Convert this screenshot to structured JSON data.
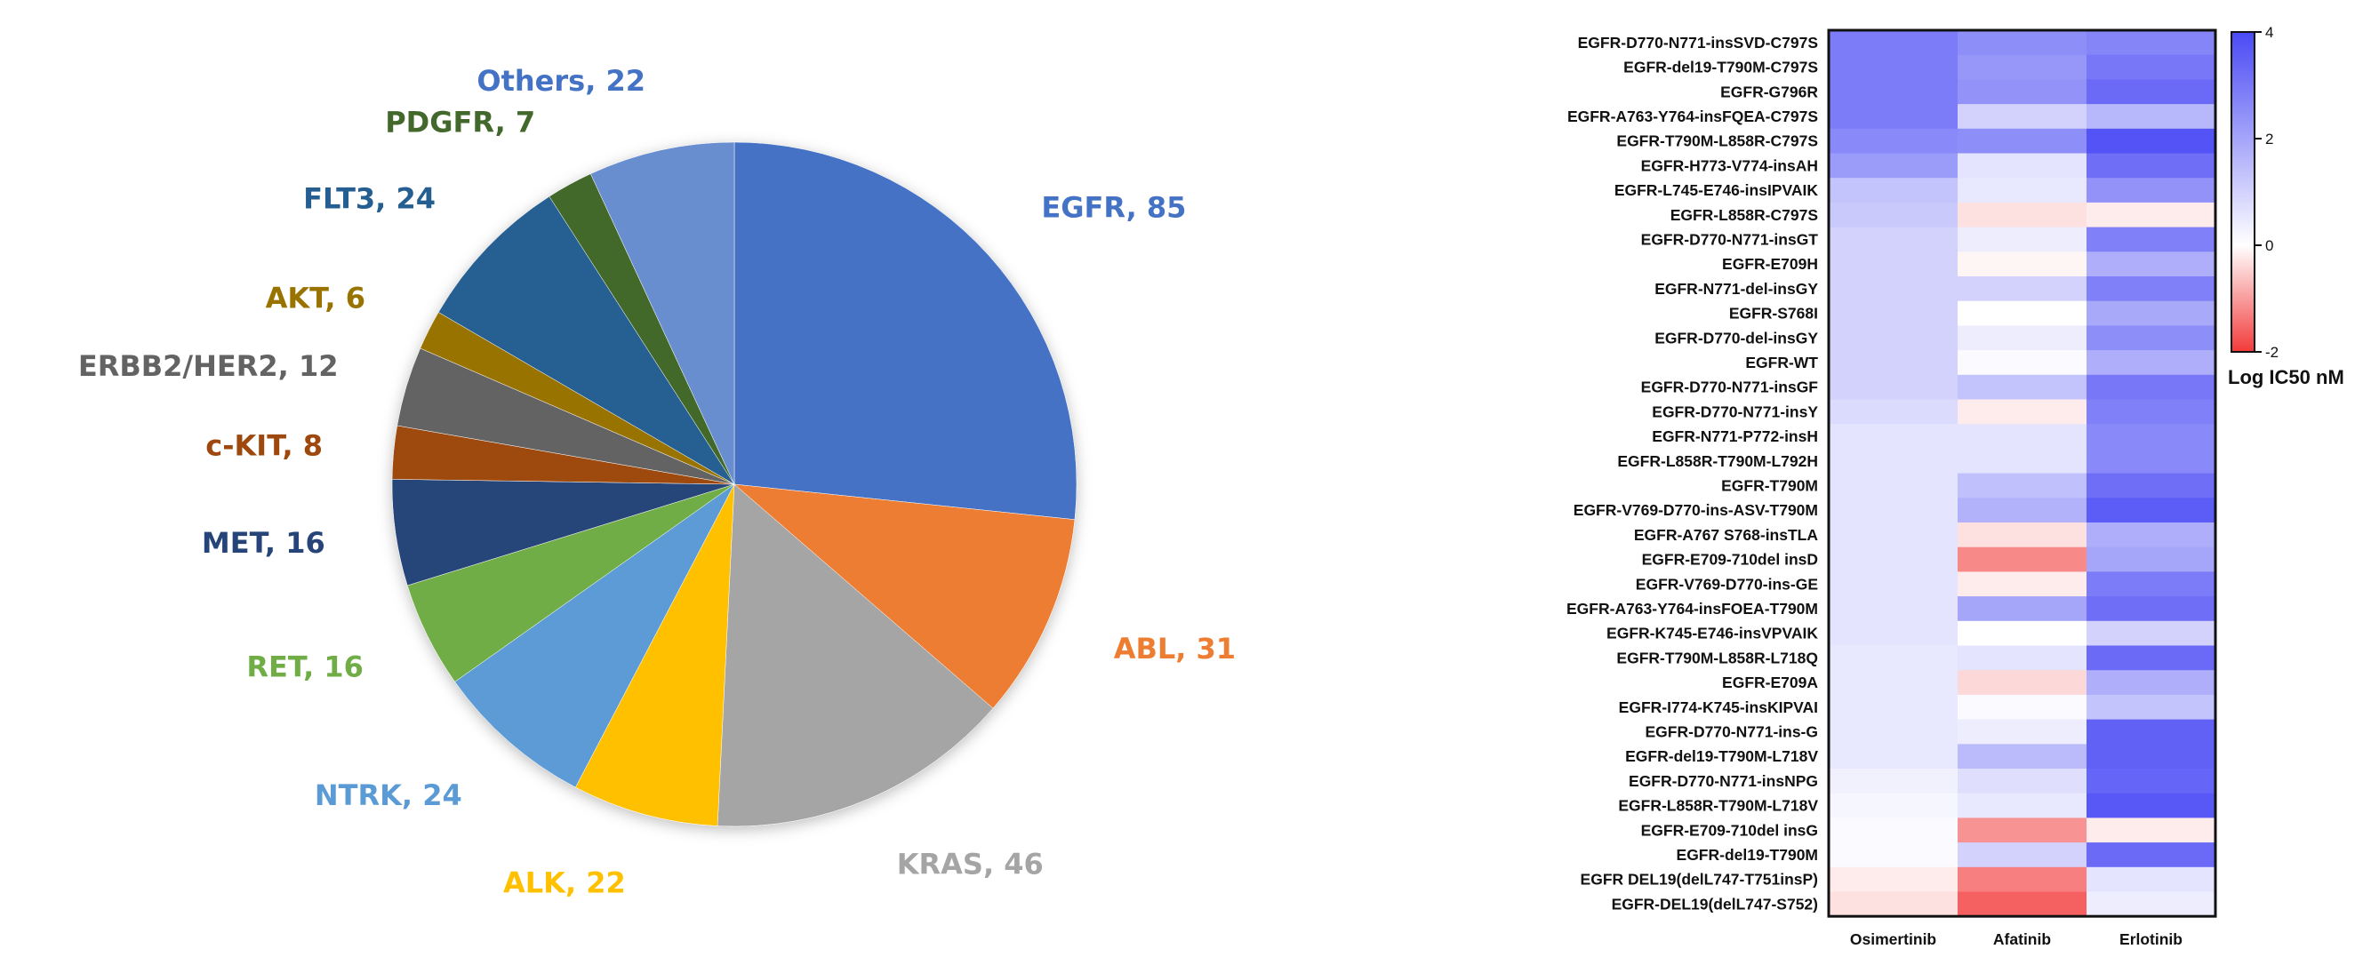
{
  "chart_data": [
    {
      "type": "pie",
      "slices": [
        {
          "label": "EGFR",
          "value": 85,
          "text": "EGFR, 85",
          "color": "#4472C4",
          "label_color": "#4472C4"
        },
        {
          "label": "ABL",
          "value": 31,
          "text": "ABL, 31",
          "color": "#ED7D31",
          "label_color": "#ED7D31"
        },
        {
          "label": "KRAS",
          "value": 46,
          "text": "KRAS, 46",
          "color": "#A5A5A5",
          "label_color": "#A5A5A5"
        },
        {
          "label": "ALK",
          "value": 22,
          "text": "ALK, 22",
          "color": "#FFC000",
          "label_color": "#FFC000"
        },
        {
          "label": "NTRK",
          "value": 24,
          "text": "NTRK, 24",
          "color": "#5B9BD5",
          "label_color": "#5B9BD5"
        },
        {
          "label": "RET",
          "value": 16,
          "text": "RET, 16",
          "color": "#70AD47",
          "label_color": "#70AD47"
        },
        {
          "label": "MET",
          "value": 16,
          "text": "MET, 16",
          "color": "#264478",
          "label_color": "#264478"
        },
        {
          "label": "c-KIT",
          "value": 8,
          "text": "c-KIT, 8",
          "color": "#9E480E",
          "label_color": "#9E480E"
        },
        {
          "label": "ERBB2/HER2",
          "value": 12,
          "text": "ERBB2/HER2, 12",
          "color": "#636363",
          "label_color": "#636363"
        },
        {
          "label": "AKT",
          "value": 6,
          "text": "AKT, 6",
          "color": "#997300",
          "label_color": "#997300"
        },
        {
          "label": "FLT3",
          "value": 24,
          "text": "FLT3, 24",
          "color": "#255E91",
          "label_color": "#255E91"
        },
        {
          "label": "PDGFR",
          "value": 7,
          "text": "PDGFR, 7",
          "color": "#43682B",
          "label_color": "#43682B"
        },
        {
          "label": "Others",
          "value": 22,
          "text": "Others, 22",
          "color": "#698ED0",
          "label_color": "#4472C4"
        }
      ]
    },
    {
      "type": "heatmap",
      "columns": [
        "Osimertinib",
        "Afatinib",
        "Erlotinib"
      ],
      "rows": [
        "EGFR-D770-N771-insSVD-C797S",
        "EGFR-del19-T790M-C797S",
        "EGFR-G796R",
        "EGFR-A763-Y764-insFQEA-C797S",
        "EGFR-T790M-L858R-C797S",
        "EGFR-H773-V774-insAH",
        "EGFR-L745-E746-insIPVAIK",
        "EGFR-L858R-C797S",
        "EGFR-D770-N771-insGT",
        "EGFR-E709H",
        "EGFR-N771-del-insGY",
        "EGFR-S768I",
        "EGFR-D770-del-insGY",
        "EGFR-WT",
        "EGFR-D770-N771-insGF",
        "EGFR-D770-N771-insY",
        "EGFR-N771-P772-insH",
        "EGFR-L858R-T790M-L792H",
        "EGFR-T790M",
        "EGFR-V769-D770-ins-ASV-T790M",
        "EGFR-A767 S768-insTLA",
        "EGFR-E709-710del insD",
        "EGFR-V769-D770-ins-GE",
        "EGFR-A763-Y764-insFOEA-T790M",
        "EGFR-K745-E746-insVPVAIK",
        "EGFR-T790M-L858R-L718Q",
        "EGFR-E709A",
        "EGFR-I774-K745-insKIPVAI",
        "EGFR-D770-N771-ins-G",
        "EGFR-del19-T790M-L718V",
        "EGFR-D770-N771-insNPG",
        "EGFR-L858R-T790M-L718V",
        "EGFR-E709-710del insG",
        "EGFR-del19-T790M",
        "EGFR DEL19(delL747-T751insP)",
        "EGFR-DEL19(delL747-S752)"
      ],
      "values": [
        [
          2.9,
          2.5,
          2.7
        ],
        [
          2.9,
          2.3,
          3.0
        ],
        [
          2.9,
          2.4,
          3.3
        ],
        [
          2.9,
          1.0,
          1.6
        ],
        [
          2.6,
          2.5,
          3.8
        ],
        [
          2.2,
          0.6,
          3.2
        ],
        [
          1.3,
          0.5,
          2.4
        ],
        [
          1.2,
          -0.3,
          -0.2
        ],
        [
          1.0,
          0.4,
          2.8
        ],
        [
          1.0,
          -0.1,
          1.8
        ],
        [
          1.0,
          1.0,
          2.8
        ],
        [
          1.0,
          0.0,
          1.9
        ],
        [
          1.0,
          0.4,
          2.5
        ],
        [
          1.0,
          0.1,
          1.8
        ],
        [
          1.0,
          1.3,
          3.0
        ],
        [
          0.8,
          -0.2,
          2.8
        ],
        [
          0.6,
          0.6,
          2.6
        ],
        [
          0.6,
          0.6,
          2.6
        ],
        [
          0.6,
          1.4,
          3.2
        ],
        [
          0.6,
          1.7,
          3.6
        ],
        [
          0.6,
          -0.3,
          1.8
        ],
        [
          0.6,
          -1.2,
          2.0
        ],
        [
          0.6,
          -0.2,
          2.9
        ],
        [
          0.6,
          2.0,
          3.2
        ],
        [
          0.6,
          0.0,
          1.0
        ],
        [
          0.5,
          0.6,
          3.3
        ],
        [
          0.5,
          -0.4,
          1.8
        ],
        [
          0.5,
          0.1,
          1.3
        ],
        [
          0.5,
          0.4,
          3.5
        ],
        [
          0.5,
          1.5,
          3.5
        ],
        [
          0.3,
          0.7,
          3.4
        ],
        [
          0.2,
          0.5,
          3.7
        ],
        [
          0.1,
          -1.1,
          -0.2
        ],
        [
          0.1,
          1.0,
          3.3
        ],
        [
          -0.2,
          -1.3,
          0.6
        ],
        [
          -0.3,
          -1.6,
          0.4
        ]
      ],
      "colorbar": {
        "min": -2,
        "max": 4,
        "ticks": [
          4,
          2,
          0,
          -2
        ],
        "low_color": "#F23A3A",
        "mid_color": "#FFFFFF",
        "high_color": "#4A4AF5",
        "title": "Log IC50 nM"
      }
    }
  ]
}
